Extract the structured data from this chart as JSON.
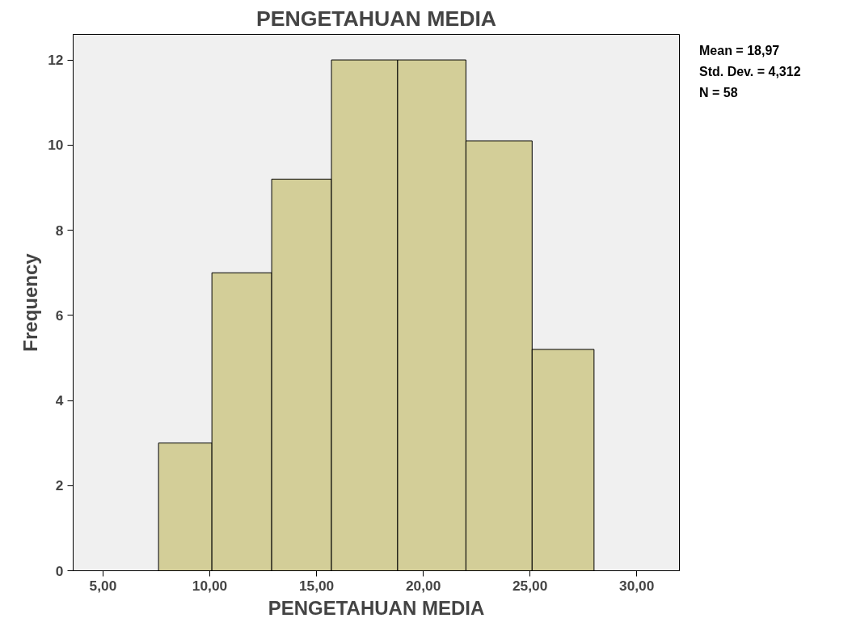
{
  "chart_data": {
    "type": "histogram",
    "title": "PENGETAHUAN MEDIA",
    "xlabel": "PENGETAHUAN MEDIA",
    "ylabel": "Frequency",
    "bins": [
      7.6,
      10.1,
      12.9,
      15.7,
      18.8,
      22.0,
      25.1,
      28.0
    ],
    "values": [
      3,
      7,
      9.2,
      12,
      12,
      10.1,
      5.2
    ],
    "color": "#d3ce98",
    "xlim": [
      3.6,
      32
    ],
    "xticks": [
      {
        "value": 5,
        "label": "5,00"
      },
      {
        "value": 10,
        "label": "10,00"
      },
      {
        "value": 15,
        "label": "15,00"
      },
      {
        "value": 20,
        "label": "20,00"
      },
      {
        "value": 25,
        "label": "25,00"
      },
      {
        "value": 30,
        "label": "30,00"
      }
    ],
    "ylim": [
      0,
      12.6
    ],
    "yticks": [
      0,
      2,
      4,
      6,
      8,
      10,
      12
    ],
    "grid": false,
    "annotations": [
      "Mean = 18,97",
      "Std. Dev. = 4,312",
      "N = 58"
    ]
  }
}
